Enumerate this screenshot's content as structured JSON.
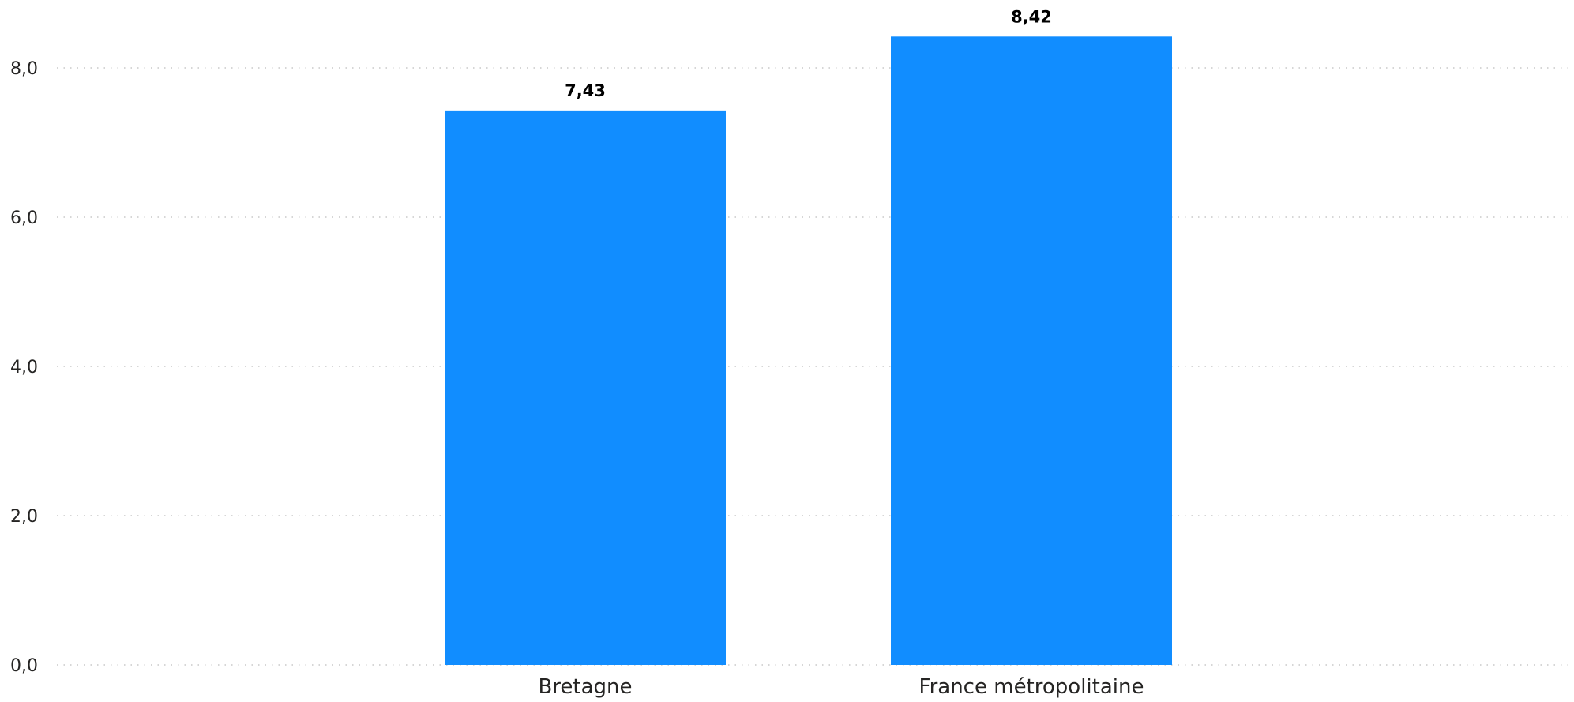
{
  "chart_data": {
    "type": "bar",
    "categories": [
      "Bretagne",
      "France métropolitaine"
    ],
    "values": [
      7.43,
      8.42
    ],
    "value_labels": [
      "7,43",
      "8,42"
    ],
    "ylim": [
      0,
      8.5
    ],
    "yticks": [
      0,
      2,
      4,
      6,
      8
    ],
    "ytick_labels": [
      "0,0",
      "2,0",
      "4,0",
      "6,0",
      "8,0"
    ],
    "grid": true,
    "bar_color": "#118DFF",
    "title": "",
    "xlabel": "",
    "ylabel": ""
  }
}
